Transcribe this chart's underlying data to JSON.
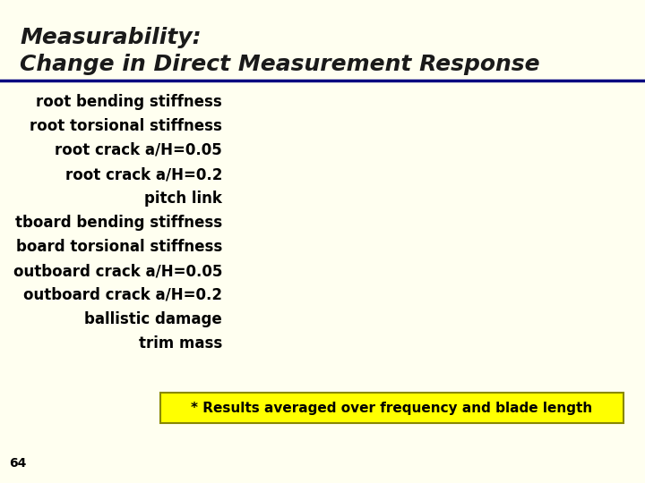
{
  "background_color": "#fffff0",
  "title_line1": "Measurability:",
  "title_line2": "Change in Direct Measurement Response",
  "title_color": "#1a1a1a",
  "title_fontsize": 18,
  "separator_color": "#000080",
  "separator_linewidth": 2.5,
  "items": [
    "root bending stiffness",
    "root torsional stiffness",
    "root crack a/H=0.05",
    "root crack a/H=0.2",
    "pitch link",
    "tboard bending stiffness",
    "board torsional stiffness",
    "outboard crack a/H=0.05",
    "outboard crack a/H=0.2",
    "ballistic damage",
    "trim mass"
  ],
  "items_fontsize": 12,
  "items_color": "#000000",
  "footnote": "* Results averaged over frequency and blade length",
  "footnote_fontsize": 11,
  "footnote_bg": "#ffff00",
  "footnote_border": "#888800",
  "page_number": "64",
  "page_number_fontsize": 10
}
